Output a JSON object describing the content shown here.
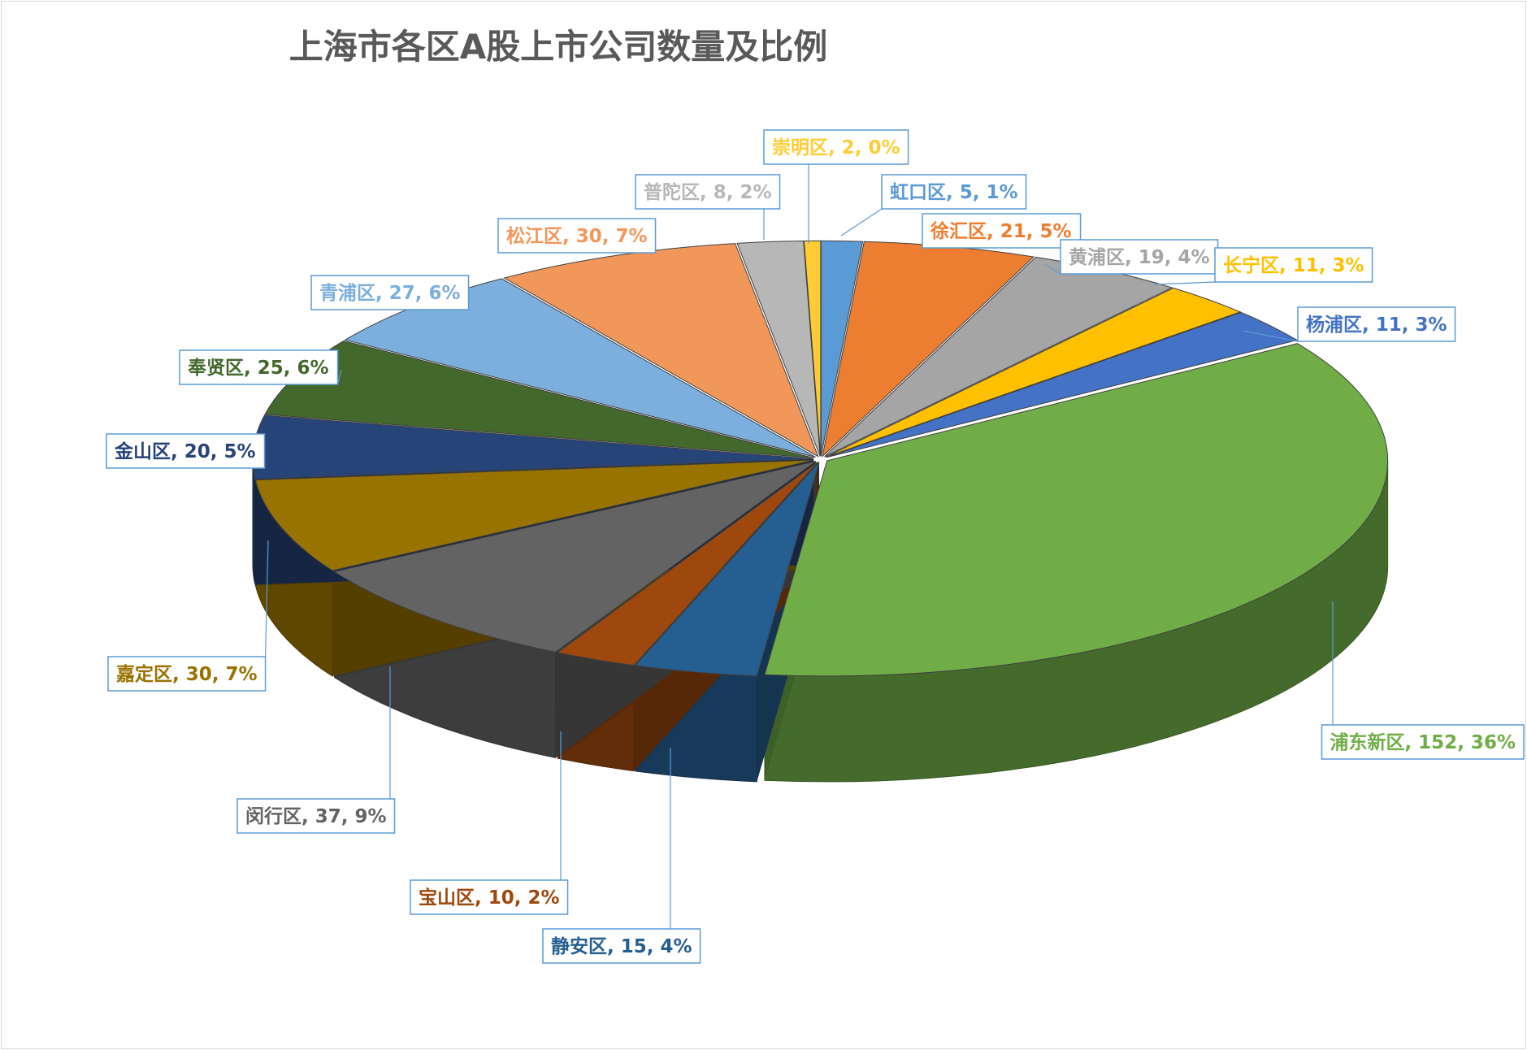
{
  "chart_data": {
    "type": "pie",
    "title": "上海市各区A股上市公司数量及比例",
    "slices": [
      {
        "name": "虹口区",
        "value": 5,
        "label": "虹口区, 5, 1%",
        "color": "#5b9bd5"
      },
      {
        "name": "徐汇区",
        "value": 21,
        "label": "徐汇区, 21, 5%",
        "color": "#ed7d31"
      },
      {
        "name": "黄浦区",
        "value": 19,
        "label": "黄浦区, 19, 4%",
        "color": "#a5a5a5"
      },
      {
        "name": "长宁区",
        "value": 11,
        "label": "长宁区, 11, 3%",
        "color": "#ffc000"
      },
      {
        "name": "杨浦区",
        "value": 11,
        "label": "杨浦区, 11, 3%",
        "color": "#4472c4"
      },
      {
        "name": "浦东新区",
        "value": 152,
        "label": "浦东新区, 152, 36%",
        "color": "#70ad47"
      },
      {
        "name": "静安区",
        "value": 15,
        "label": "静安区, 15, 4%",
        "color": "#255e91"
      },
      {
        "name": "宝山区",
        "value": 10,
        "label": "宝山区, 10, 2%",
        "color": "#9e480e"
      },
      {
        "name": "闵行区",
        "value": 37,
        "label": "闵行区, 37, 9%",
        "color": "#636363"
      },
      {
        "name": "嘉定区",
        "value": 30,
        "label": "嘉定区, 30, 7%",
        "color": "#997300"
      },
      {
        "name": "金山区",
        "value": 20,
        "label": "金山区, 20, 5%",
        "color": "#264478"
      },
      {
        "name": "奉贤区",
        "value": 25,
        "label": "奉贤区, 25, 6%",
        "color": "#43682b"
      },
      {
        "name": "青浦区",
        "value": 27,
        "label": "青浦区, 27, 6%",
        "color": "#7cafdd"
      },
      {
        "name": "松江区",
        "value": 30,
        "label": "松江区, 30, 7%",
        "color": "#f1975a"
      },
      {
        "name": "普陀区",
        "value": 8,
        "label": "普陀区, 8, 2%",
        "color": "#b7b7b7"
      },
      {
        "name": "崇明区",
        "value": 2,
        "label": "崇明区, 2, 0%",
        "color": "#ffcd33"
      }
    ]
  }
}
